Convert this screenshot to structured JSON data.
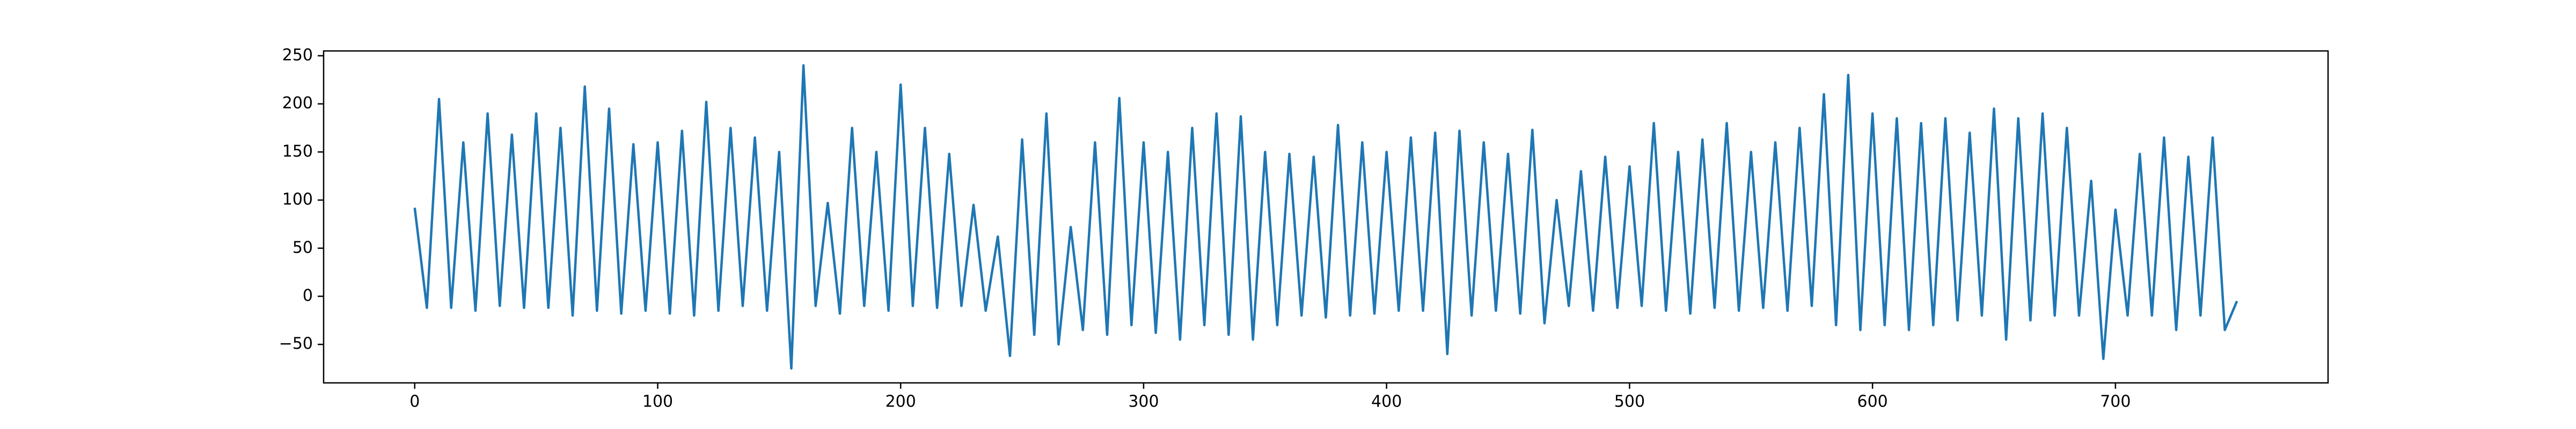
{
  "chart_data": {
    "type": "line",
    "x": [
      0,
      5,
      10,
      15,
      20,
      25,
      30,
      35,
      40,
      45,
      50,
      55,
      60,
      65,
      70,
      75,
      80,
      85,
      90,
      95,
      100,
      105,
      110,
      115,
      120,
      125,
      130,
      135,
      140,
      145,
      150,
      155,
      160,
      165,
      170,
      175,
      180,
      185,
      190,
      195,
      200,
      205,
      210,
      215,
      220,
      225,
      230,
      235,
      240,
      245,
      250,
      255,
      260,
      265,
      270,
      275,
      280,
      285,
      290,
      295,
      300,
      305,
      310,
      315,
      320,
      325,
      330,
      335,
      340,
      345,
      350,
      355,
      360,
      365,
      370,
      375,
      380,
      385,
      390,
      395,
      400,
      405,
      410,
      415,
      420,
      425,
      430,
      435,
      440,
      445,
      450,
      455,
      460,
      465,
      470,
      475,
      480,
      485,
      490,
      495,
      500,
      505,
      510,
      515,
      520,
      525,
      530,
      535,
      540,
      545,
      550,
      555,
      560,
      565,
      570,
      575,
      580,
      585,
      590,
      595,
      600,
      605,
      610,
      615,
      620,
      625,
      630,
      635,
      640,
      645,
      650,
      655,
      660,
      665,
      670,
      675,
      680,
      685,
      690,
      695,
      700,
      705,
      710,
      715,
      720,
      725,
      730,
      735,
      740,
      745,
      750
    ],
    "series": [
      {
        "color": "#1f77b4",
        "values": [
          92,
          -12,
          205,
          -12,
          160,
          -15,
          190,
          -10,
          168,
          -12,
          190,
          -12,
          175,
          -20,
          218,
          -15,
          195,
          -18,
          158,
          -15,
          160,
          -18,
          172,
          -20,
          202,
          -15,
          175,
          -10,
          165,
          -15,
          150,
          -75,
          240,
          -10,
          97,
          -18,
          175,
          -10,
          150,
          -15,
          220,
          -10,
          175,
          -12,
          148,
          -10,
          95,
          -15,
          62,
          -62,
          163,
          -40,
          190,
          -50,
          72,
          -35,
          160,
          -40,
          206,
          -30,
          160,
          -38,
          150,
          -45,
          175,
          -30,
          190,
          -40,
          187,
          -45,
          150,
          -30,
          148,
          -20,
          145,
          -22,
          178,
          -20,
          160,
          -18,
          150,
          -15,
          165,
          -15,
          170,
          -60,
          172,
          -20,
          160,
          -15,
          148,
          -18,
          173,
          -28,
          100,
          -10,
          130,
          -15,
          145,
          -12,
          135,
          -10,
          180,
          -15,
          150,
          -18,
          163,
          -12,
          180,
          -15,
          150,
          -12,
          160,
          -15,
          175,
          -10,
          210,
          -30,
          230,
          -35,
          190,
          -30,
          185,
          -35,
          180,
          -30,
          185,
          -25,
          170,
          -20,
          195,
          -45,
          185,
          -25,
          190,
          -20,
          175,
          -20,
          120,
          -65,
          90,
          -20,
          148,
          -20,
          165,
          -35,
          145,
          -20,
          165,
          -35,
          -5
        ]
      }
    ],
    "xlim": [
      -37.5,
      787.5
    ],
    "xticks": [
      0,
      100,
      200,
      300,
      400,
      500,
      600,
      700
    ],
    "ylim": [
      -90,
      255
    ],
    "yticks": [
      {
        "value": -50,
        "label": "−50"
      },
      0,
      50,
      100,
      150,
      200,
      250
    ]
  }
}
